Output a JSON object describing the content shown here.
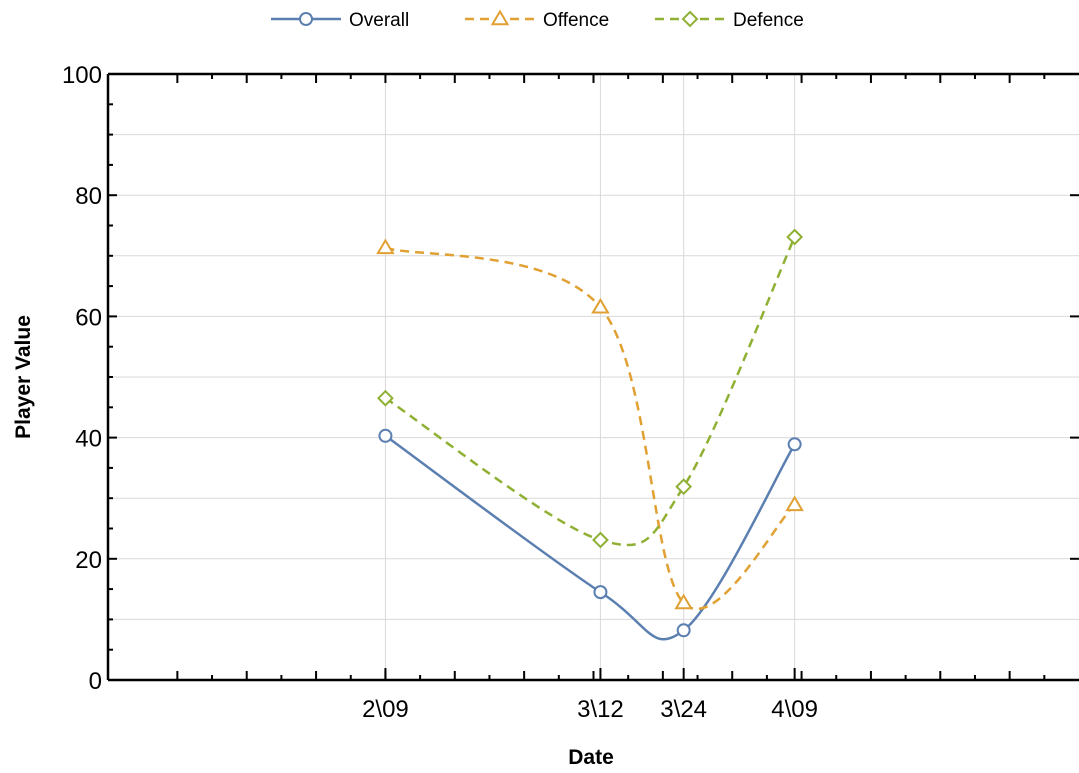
{
  "chart_data": {
    "type": "line",
    "title": "",
    "xlabel": "Date",
    "ylabel": "Player Value",
    "x": [
      "2\\09",
      "3\\12",
      "3\\24",
      "4\\09"
    ],
    "x_days": [
      40,
      71,
      83,
      99
    ],
    "xlim_days": [
      0,
      140
    ],
    "ylim": [
      0,
      100
    ],
    "y_ticks": [
      0,
      20,
      40,
      60,
      80,
      100
    ],
    "grid": true,
    "legend_position": "top-center",
    "series": [
      {
        "name": "Overall",
        "values": [
          40.3,
          14.5,
          8.2,
          38.9
        ],
        "color": "#5b7fb0",
        "marker": "circle",
        "dashed": false
      },
      {
        "name": "Offence",
        "values": [
          71.3,
          61.5,
          12.7,
          28.9
        ],
        "color": "#e1a032",
        "marker": "triangle",
        "dashed": true
      },
      {
        "name": "Defence",
        "values": [
          46.5,
          23.1,
          31.9,
          73.1
        ],
        "color": "#8fb032",
        "marker": "diamond",
        "dashed": true
      }
    ]
  }
}
